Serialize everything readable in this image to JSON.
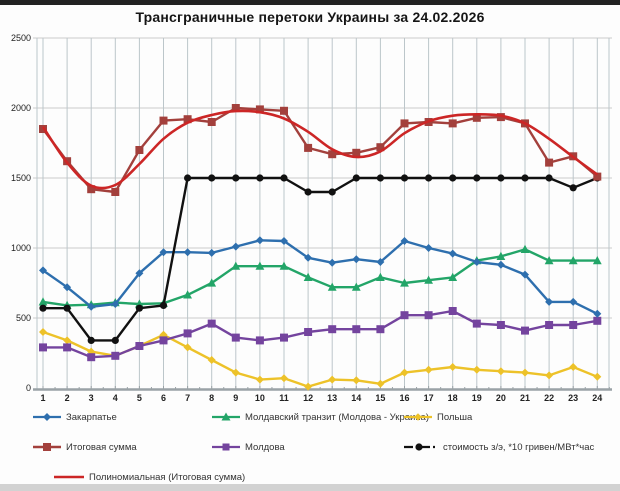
{
  "title": "Трансграничные перетоки Украины за 24.02.2026",
  "chart_data": {
    "type": "line",
    "x": [
      1,
      2,
      3,
      4,
      5,
      6,
      7,
      8,
      9,
      10,
      11,
      12,
      13,
      14,
      15,
      16,
      17,
      18,
      19,
      20,
      21,
      22,
      23,
      24
    ],
    "xlabel": "",
    "ylabel": "",
    "ylim": [
      0,
      2500
    ],
    "y_ticks": [
      0,
      500,
      1000,
      1500,
      2000,
      2500
    ],
    "grid": "both",
    "legend_position": "bottom",
    "series": [
      {
        "name": "Закарпатье",
        "color": "#2e6fae",
        "marker": "diamond",
        "smooth": false,
        "values": [
          840,
          720,
          580,
          600,
          820,
          970,
          970,
          965,
          1010,
          1055,
          1050,
          930,
          895,
          920,
          900,
          1050,
          1000,
          960,
          900,
          880,
          810,
          615,
          615,
          530
        ]
      },
      {
        "name": "Молдавский транзит (Молдова - Украина)",
        "color": "#23a568",
        "marker": "triangle",
        "smooth": false,
        "values": [
          615,
          590,
          595,
          610,
          600,
          605,
          665,
          750,
          870,
          870,
          870,
          790,
          720,
          720,
          790,
          750,
          770,
          790,
          910,
          940,
          990,
          910,
          910,
          910
        ]
      },
      {
        "name": "Польша",
        "color": "#edc229",
        "marker": "diamond",
        "smooth": false,
        "values": [
          400,
          340,
          260,
          230,
          300,
          380,
          290,
          200,
          110,
          60,
          70,
          10,
          60,
          55,
          30,
          110,
          130,
          150,
          130,
          120,
          110,
          90,
          150,
          80
        ]
      },
      {
        "name": "Итоговая сумма",
        "color": "#a3403c",
        "marker": "square",
        "smooth": false,
        "values": [
          1850,
          1620,
          1420,
          1400,
          1700,
          1910,
          1920,
          1900,
          2000,
          1990,
          1980,
          1715,
          1670,
          1680,
          1720,
          1890,
          1900,
          1890,
          1930,
          1935,
          1890,
          1610,
          1655,
          1510
        ]
      },
      {
        "name": "Молдова",
        "color": "#74449e",
        "marker": "square",
        "smooth": false,
        "values": [
          290,
          290,
          220,
          230,
          300,
          340,
          390,
          460,
          360,
          340,
          360,
          400,
          420,
          420,
          420,
          520,
          520,
          550,
          460,
          450,
          410,
          450,
          450,
          480
        ]
      },
      {
        "name": "стоимость з/э, *10 гривен/МВт*час",
        "color": "#111111",
        "marker": "circle",
        "smooth": false,
        "values": [
          570,
          570,
          340,
          340,
          570,
          590,
          1500,
          1500,
          1500,
          1500,
          1500,
          1400,
          1400,
          1500,
          1500,
          1500,
          1500,
          1500,
          1500,
          1500,
          1500,
          1500,
          1430,
          1500
        ]
      },
      {
        "name": "Полиномиальная (Итоговая сумма)",
        "color": "#cc2626",
        "marker": "none",
        "smooth": true,
        "values": [
          1865,
          1610,
          1445,
          1450,
          1600,
          1780,
          1895,
          1950,
          1978,
          1970,
          1925,
          1830,
          1705,
          1650,
          1690,
          1820,
          1905,
          1945,
          1955,
          1945,
          1890,
          1780,
          1650,
          1525
        ]
      }
    ]
  }
}
